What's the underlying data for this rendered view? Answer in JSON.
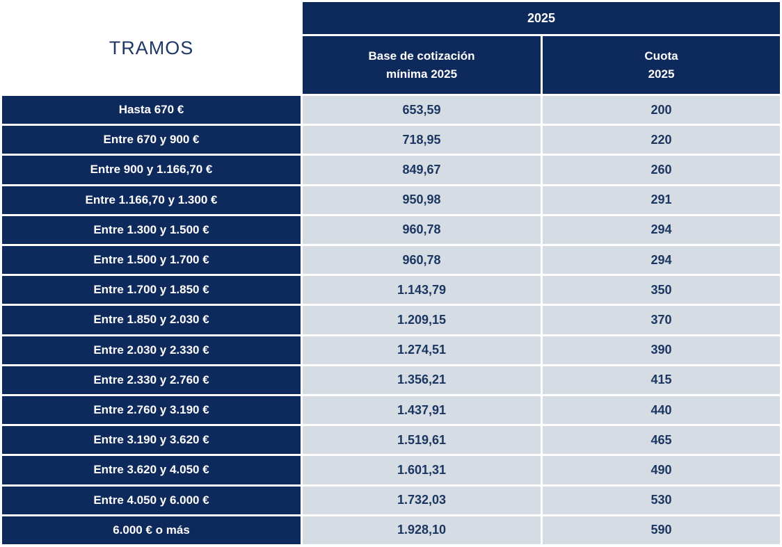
{
  "table": {
    "corner_label": "TRAMOS",
    "year_header": "2025",
    "col_base": {
      "line1": "Base de cotización",
      "line2": "mínima 2025"
    },
    "col_cuota": {
      "line1": "Cuota",
      "line2": "2025"
    }
  },
  "rows": [
    {
      "tramo": "Hasta 670 €",
      "base": "653,59",
      "cuota": "200"
    },
    {
      "tramo": "Entre 670 y 900 €",
      "base": "718,95",
      "cuota": "220"
    },
    {
      "tramo": "Entre 900 y 1.166,70 €",
      "base": "849,67",
      "cuota": "260"
    },
    {
      "tramo": "Entre 1.166,70 y 1.300 €",
      "base": "950,98",
      "cuota": "291"
    },
    {
      "tramo": "Entre 1.300 y 1.500 €",
      "base": "960,78",
      "cuota": "294"
    },
    {
      "tramo": "Entre 1.500 y 1.700 €",
      "base": "960,78",
      "cuota": "294"
    },
    {
      "tramo": "Entre 1.700 y 1.850 €",
      "base": "1.143,79",
      "cuota": "350"
    },
    {
      "tramo": "Entre 1.850 y 2.030 €",
      "base": "1.209,15",
      "cuota": "370"
    },
    {
      "tramo": "Entre 2.030 y 2.330 €",
      "base": "1.274,51",
      "cuota": "390"
    },
    {
      "tramo": "Entre 2.330 y 2.760 €",
      "base": "1.356,21",
      "cuota": "415"
    },
    {
      "tramo": "Entre 2.760 y 3.190 €",
      "base": "1.437,91",
      "cuota": "440"
    },
    {
      "tramo": "Entre 3.190 y 3.620 €",
      "base": "1.519,61",
      "cuota": "465"
    },
    {
      "tramo": "Entre 3.620 y 4.050 €",
      "base": "1.601,31",
      "cuota": "490"
    },
    {
      "tramo": "Entre 4.050 y 6.000 €",
      "base": "1.732,03",
      "cuota": "530"
    },
    {
      "tramo": "6.000 € o más",
      "base": "1.928,10",
      "cuota": "590"
    }
  ],
  "colors": {
    "navy": "#0e2a5c",
    "light": "#d6dce4",
    "value_text": "#1b3661",
    "heading_text": "#1f3864"
  },
  "chart_data": {
    "type": "table",
    "title": "2025",
    "columns": [
      "TRAMOS",
      "Base de cotización mínima 2025",
      "Cuota 2025"
    ],
    "rows": [
      [
        "Hasta 670 €",
        "653,59",
        "200"
      ],
      [
        "Entre 670 y 900 €",
        "718,95",
        "220"
      ],
      [
        "Entre 900 y 1.166,70 €",
        "849,67",
        "260"
      ],
      [
        "Entre 1.166,70 y 1.300 €",
        "950,98",
        "291"
      ],
      [
        "Entre 1.300 y 1.500 €",
        "960,78",
        "294"
      ],
      [
        "Entre 1.500 y 1.700 €",
        "960,78",
        "294"
      ],
      [
        "Entre 1.700 y 1.850 €",
        "1.143,79",
        "350"
      ],
      [
        "Entre 1.850 y 2.030 €",
        "1.209,15",
        "370"
      ],
      [
        "Entre 2.030 y 2.330 €",
        "1.274,51",
        "390"
      ],
      [
        "Entre 2.330 y 2.760 €",
        "1.356,21",
        "415"
      ],
      [
        "Entre 2.760 y 3.190 €",
        "1.437,91",
        "440"
      ],
      [
        "Entre 3.190 y 3.620 €",
        "1.519,61",
        "465"
      ],
      [
        "Entre 3.620 y 4.050 €",
        "1.601,31",
        "490"
      ],
      [
        "Entre 4.050 y 6.000 €",
        "1.732,03",
        "530"
      ],
      [
        "6.000 € o más",
        "1.928,10",
        "590"
      ]
    ]
  }
}
